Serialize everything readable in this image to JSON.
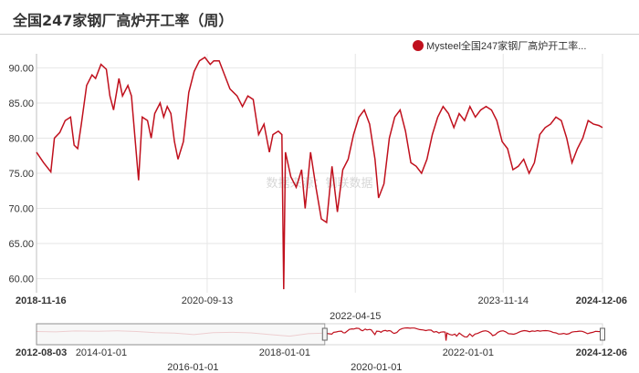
{
  "title": "全国247家钢厂高炉开工率（周）",
  "watermark": "数据来源：钢联数据",
  "colors": {
    "series": "#c0101d",
    "grid": "#e6e6e6",
    "axis": "#333333"
  },
  "chart_data": {
    "type": "line",
    "title": "全国247家钢厂高炉开工率（周）",
    "xlabel": "",
    "ylabel": "",
    "legend_position": "top-right",
    "grid": true,
    "ylim": [
      58,
      92
    ],
    "y_ticks": [
      "60.00",
      "65.00",
      "70.00",
      "75.00",
      "80.00",
      "85.00",
      "90.00"
    ],
    "x_range": [
      "2018-11-16",
      "2024-12-06"
    ],
    "x_ticks": [
      {
        "date": "2018-11-16",
        "label": "2018-11-16",
        "row": 1,
        "bold": true
      },
      {
        "date": "2020-09-13",
        "label": "2020-09-13",
        "row": 1,
        "bold": false
      },
      {
        "date": "2022-04-15",
        "label": "2022-04-15",
        "row": 2,
        "bold": false
      },
      {
        "date": "2023-11-14",
        "label": "2023-11-14",
        "row": 1,
        "bold": false
      },
      {
        "date": "2024-12-06",
        "label": "2024-12-06",
        "row": 1,
        "bold": true
      }
    ],
    "series": [
      {
        "name": "Mysteel全国247家钢厂高炉开工率...",
        "color": "#c0101d",
        "points": [
          [
            "2018-11-16",
            78.0
          ],
          [
            "2018-12-14",
            76.5
          ],
          [
            "2019-01-11",
            75.2
          ],
          [
            "2019-01-25",
            80.0
          ],
          [
            "2019-02-15",
            80.8
          ],
          [
            "2019-03-08",
            82.5
          ],
          [
            "2019-03-29",
            83.0
          ],
          [
            "2019-04-12",
            79.0
          ],
          [
            "2019-04-26",
            78.5
          ],
          [
            "2019-05-10",
            82.0
          ],
          [
            "2019-05-31",
            87.5
          ],
          [
            "2019-06-21",
            89.0
          ],
          [
            "2019-07-05",
            88.5
          ],
          [
            "2019-07-26",
            90.5
          ],
          [
            "2019-08-16",
            89.8
          ],
          [
            "2019-08-30",
            86.0
          ],
          [
            "2019-09-13",
            84.0
          ],
          [
            "2019-10-04",
            88.5
          ],
          [
            "2019-10-18",
            86.0
          ],
          [
            "2019-11-08",
            87.5
          ],
          [
            "2019-11-22",
            86.0
          ],
          [
            "2019-12-06",
            80.0
          ],
          [
            "2019-12-20",
            74.0
          ],
          [
            "2020-01-03",
            83.0
          ],
          [
            "2020-01-24",
            82.5
          ],
          [
            "2020-02-07",
            80.0
          ],
          [
            "2020-02-21",
            83.5
          ],
          [
            "2020-03-13",
            85.0
          ],
          [
            "2020-03-27",
            83.0
          ],
          [
            "2020-04-10",
            84.5
          ],
          [
            "2020-04-24",
            83.5
          ],
          [
            "2020-05-08",
            79.5
          ],
          [
            "2020-05-22",
            77.0
          ],
          [
            "2020-06-12",
            79.5
          ],
          [
            "2020-07-03",
            86.5
          ],
          [
            "2020-07-24",
            89.5
          ],
          [
            "2020-08-14",
            91.0
          ],
          [
            "2020-09-04",
            91.5
          ],
          [
            "2020-09-25",
            90.5
          ],
          [
            "2020-10-09",
            91.0
          ],
          [
            "2020-10-30",
            91.0
          ],
          [
            "2020-11-20",
            89.0
          ],
          [
            "2020-12-11",
            87.0
          ],
          [
            "2021-01-08",
            86.0
          ],
          [
            "2021-01-29",
            84.5
          ],
          [
            "2021-02-19",
            86.0
          ],
          [
            "2021-03-12",
            85.5
          ],
          [
            "2021-04-02",
            80.5
          ],
          [
            "2021-04-23",
            82.0
          ],
          [
            "2021-05-14",
            78.0
          ],
          [
            "2021-05-28",
            80.5
          ],
          [
            "2021-06-18",
            81.0
          ],
          [
            "2021-07-02",
            80.5
          ],
          [
            "2021-07-09",
            58.5
          ],
          [
            "2021-07-16",
            78.0
          ],
          [
            "2021-08-06",
            74.5
          ],
          [
            "2021-08-27",
            73.0
          ],
          [
            "2021-09-17",
            75.5
          ],
          [
            "2021-10-01",
            70.0
          ],
          [
            "2021-10-22",
            78.0
          ],
          [
            "2021-11-12",
            73.0
          ],
          [
            "2021-12-03",
            68.5
          ],
          [
            "2021-12-24",
            68.0
          ],
          [
            "2022-01-14",
            76.0
          ],
          [
            "2022-02-04",
            69.5
          ],
          [
            "2022-02-25",
            75.5
          ],
          [
            "2022-03-18",
            77.0
          ],
          [
            "2022-04-08",
            80.5
          ],
          [
            "2022-04-29",
            83.0
          ],
          [
            "2022-05-20",
            84.0
          ],
          [
            "2022-06-10",
            82.0
          ],
          [
            "2022-07-01",
            77.0
          ],
          [
            "2022-07-15",
            71.5
          ],
          [
            "2022-08-05",
            73.5
          ],
          [
            "2022-08-26",
            80.0
          ],
          [
            "2022-09-16",
            83.0
          ],
          [
            "2022-10-07",
            84.0
          ],
          [
            "2022-10-28",
            81.0
          ],
          [
            "2022-11-18",
            76.5
          ],
          [
            "2022-12-09",
            76.0
          ],
          [
            "2022-12-30",
            75.0
          ],
          [
            "2023-01-20",
            77.0
          ],
          [
            "2023-02-10",
            80.5
          ],
          [
            "2023-03-03",
            83.0
          ],
          [
            "2023-03-24",
            84.5
          ],
          [
            "2023-04-14",
            83.5
          ],
          [
            "2023-05-05",
            81.5
          ],
          [
            "2023-05-26",
            83.5
          ],
          [
            "2023-06-16",
            82.5
          ],
          [
            "2023-07-07",
            84.5
          ],
          [
            "2023-07-28",
            83.0
          ],
          [
            "2023-08-18",
            84.0
          ],
          [
            "2023-09-08",
            84.5
          ],
          [
            "2023-09-29",
            84.0
          ],
          [
            "2023-10-20",
            82.5
          ],
          [
            "2023-11-10",
            79.5
          ],
          [
            "2023-12-01",
            78.5
          ],
          [
            "2023-12-22",
            75.5
          ],
          [
            "2024-01-12",
            76.0
          ],
          [
            "2024-02-02",
            77.0
          ],
          [
            "2024-02-23",
            75.0
          ],
          [
            "2024-03-15",
            76.5
          ],
          [
            "2024-04-05",
            80.5
          ],
          [
            "2024-04-26",
            81.5
          ],
          [
            "2024-05-17",
            82.0
          ],
          [
            "2024-06-07",
            83.0
          ],
          [
            "2024-06-28",
            82.5
          ],
          [
            "2024-07-19",
            80.0
          ],
          [
            "2024-08-09",
            76.5
          ],
          [
            "2024-08-30",
            78.5
          ],
          [
            "2024-09-20",
            80.0
          ],
          [
            "2024-10-11",
            82.5
          ],
          [
            "2024-11-01",
            82.0
          ],
          [
            "2024-11-22",
            81.8
          ],
          [
            "2024-12-06",
            81.5
          ]
        ]
      }
    ]
  },
  "navigator": {
    "range": [
      "2012-08-03",
      "2024-12-06"
    ],
    "selected": [
      "2018-11-16",
      "2024-12-06"
    ],
    "ticks": [
      {
        "date": "2012-08-03",
        "label": "2012-08-03",
        "row": 1,
        "bold": true
      },
      {
        "date": "2014-01-01",
        "label": "2014-01-01",
        "row": 1,
        "bold": false
      },
      {
        "date": "2016-01-01",
        "label": "2016-01-01",
        "row": 2,
        "bold": false
      },
      {
        "date": "2018-01-01",
        "label": "2018-01-01",
        "row": 1,
        "bold": false
      },
      {
        "date": "2020-01-01",
        "label": "2020-01-01",
        "row": 2,
        "bold": false
      },
      {
        "date": "2022-01-01",
        "label": "2022-01-01",
        "row": 1,
        "bold": false
      },
      {
        "date": "2024-12-06",
        "label": "2024-12-06",
        "row": 1,
        "bold": true
      }
    ],
    "history": [
      [
        "2012-08-03",
        82.0
      ],
      [
        "2013-01-04",
        81.0
      ],
      [
        "2013-06-07",
        83.5
      ],
      [
        "2013-12-06",
        82.5
      ],
      [
        "2014-05-09",
        84.0
      ],
      [
        "2014-10-10",
        82.0
      ],
      [
        "2015-03-06",
        79.0
      ],
      [
        "2015-08-07",
        78.0
      ],
      [
        "2016-01-08",
        74.0
      ],
      [
        "2016-06-10",
        79.0
      ],
      [
        "2016-11-11",
        80.0
      ],
      [
        "2017-04-07",
        78.5
      ],
      [
        "2017-09-08",
        74.0
      ],
      [
        "2018-02-09",
        70.0
      ],
      [
        "2018-07-06",
        76.5
      ],
      [
        "2018-11-16",
        78.0
      ]
    ]
  }
}
